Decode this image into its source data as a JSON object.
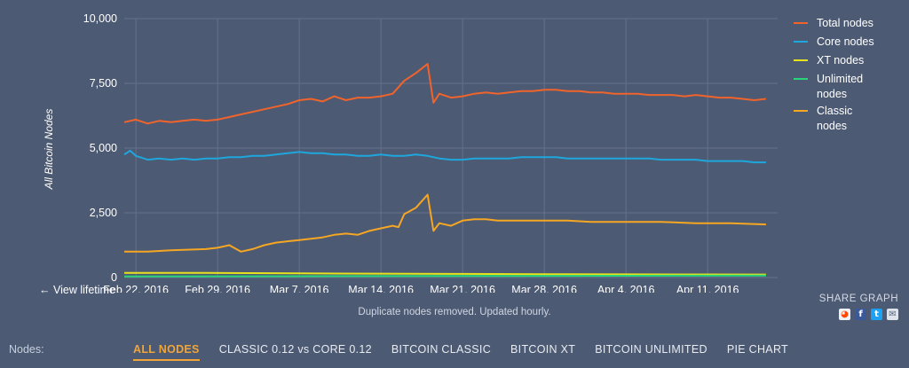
{
  "chart_data": {
    "type": "line",
    "ylabel": "All Bitcoin Nodes",
    "ylim": [
      0,
      10000
    ],
    "yticks": [
      {
        "value": 0,
        "label": "0"
      },
      {
        "value": 2500,
        "label": "2,500"
      },
      {
        "value": 5000,
        "label": "5,000"
      },
      {
        "value": 7500,
        "label": "7,500"
      },
      {
        "value": 10000,
        "label": "10,000"
      }
    ],
    "xlim": [
      "2016-02-21",
      "2016-04-17"
    ],
    "xticks": [
      {
        "date": "2016-02-22",
        "label": "Feb 22, 2016"
      },
      {
        "date": "2016-02-29",
        "label": "Feb 29, 2016"
      },
      {
        "date": "2016-03-07",
        "label": "Mar 7, 2016"
      },
      {
        "date": "2016-03-14",
        "label": "Mar 14, 2016"
      },
      {
        "date": "2016-03-21",
        "label": "Mar 21, 2016"
      },
      {
        "date": "2016-03-28",
        "label": "Mar 28, 2016"
      },
      {
        "date": "2016-04-04",
        "label": "Apr 4, 2016"
      },
      {
        "date": "2016-04-11",
        "label": "Apr 11, 2016"
      }
    ],
    "grid": true,
    "legend": "right",
    "series": [
      {
        "name": "Total nodes",
        "color": "#f0642c",
        "points": [
          [
            "2016-02-21",
            6000
          ],
          [
            "2016-02-22",
            6100
          ],
          [
            "2016-02-23",
            5950
          ],
          [
            "2016-02-24",
            6050
          ],
          [
            "2016-02-25",
            6000
          ],
          [
            "2016-02-26",
            6050
          ],
          [
            "2016-02-27",
            6100
          ],
          [
            "2016-02-28",
            6050
          ],
          [
            "2016-02-29",
            6100
          ],
          [
            "2016-03-01",
            6200
          ],
          [
            "2016-03-02",
            6300
          ],
          [
            "2016-03-03",
            6400
          ],
          [
            "2016-03-04",
            6500
          ],
          [
            "2016-03-05",
            6600
          ],
          [
            "2016-03-06",
            6700
          ],
          [
            "2016-03-07",
            6850
          ],
          [
            "2016-03-08",
            6900
          ],
          [
            "2016-03-09",
            6800
          ],
          [
            "2016-03-10",
            7000
          ],
          [
            "2016-03-11",
            6850
          ],
          [
            "2016-03-12",
            6950
          ],
          [
            "2016-03-13",
            6950
          ],
          [
            "2016-03-14",
            7000
          ],
          [
            "2016-03-15",
            7100
          ],
          [
            "2016-03-16",
            7600
          ],
          [
            "2016-03-17",
            7900
          ],
          [
            "2016-03-18",
            8250
          ],
          [
            "2016-03-18T12:00",
            6750
          ],
          [
            "2016-03-19",
            7100
          ],
          [
            "2016-03-20",
            6950
          ],
          [
            "2016-03-21",
            7000
          ],
          [
            "2016-03-22",
            7100
          ],
          [
            "2016-03-23",
            7150
          ],
          [
            "2016-03-24",
            7100
          ],
          [
            "2016-03-25",
            7150
          ],
          [
            "2016-03-26",
            7200
          ],
          [
            "2016-03-27",
            7200
          ],
          [
            "2016-03-28",
            7250
          ],
          [
            "2016-03-29",
            7250
          ],
          [
            "2016-03-30",
            7200
          ],
          [
            "2016-03-31",
            7200
          ],
          [
            "2016-04-01",
            7150
          ],
          [
            "2016-04-02",
            7150
          ],
          [
            "2016-04-03",
            7100
          ],
          [
            "2016-04-04",
            7100
          ],
          [
            "2016-04-05",
            7100
          ],
          [
            "2016-04-06",
            7050
          ],
          [
            "2016-04-07",
            7050
          ],
          [
            "2016-04-08",
            7050
          ],
          [
            "2016-04-09",
            7000
          ],
          [
            "2016-04-10",
            7050
          ],
          [
            "2016-04-11",
            7000
          ],
          [
            "2016-04-12",
            6950
          ],
          [
            "2016-04-13",
            6950
          ],
          [
            "2016-04-14",
            6900
          ],
          [
            "2016-04-15",
            6850
          ],
          [
            "2016-04-16",
            6900
          ]
        ]
      },
      {
        "name": "Core nodes",
        "color": "#1ea7dd",
        "points": [
          [
            "2016-02-21",
            4750
          ],
          [
            "2016-02-21T12:00",
            4900
          ],
          [
            "2016-02-22",
            4700
          ],
          [
            "2016-02-23",
            4550
          ],
          [
            "2016-02-24",
            4600
          ],
          [
            "2016-02-25",
            4550
          ],
          [
            "2016-02-26",
            4600
          ],
          [
            "2016-02-27",
            4550
          ],
          [
            "2016-02-28",
            4600
          ],
          [
            "2016-02-29",
            4600
          ],
          [
            "2016-03-01",
            4650
          ],
          [
            "2016-03-02",
            4650
          ],
          [
            "2016-03-03",
            4700
          ],
          [
            "2016-03-04",
            4700
          ],
          [
            "2016-03-05",
            4750
          ],
          [
            "2016-03-06",
            4800
          ],
          [
            "2016-03-07",
            4850
          ],
          [
            "2016-03-08",
            4800
          ],
          [
            "2016-03-09",
            4800
          ],
          [
            "2016-03-10",
            4750
          ],
          [
            "2016-03-11",
            4750
          ],
          [
            "2016-03-12",
            4700
          ],
          [
            "2016-03-13",
            4700
          ],
          [
            "2016-03-14",
            4750
          ],
          [
            "2016-03-15",
            4700
          ],
          [
            "2016-03-16",
            4700
          ],
          [
            "2016-03-17",
            4750
          ],
          [
            "2016-03-18",
            4700
          ],
          [
            "2016-03-19",
            4600
          ],
          [
            "2016-03-20",
            4550
          ],
          [
            "2016-03-21",
            4550
          ],
          [
            "2016-03-22",
            4600
          ],
          [
            "2016-03-23",
            4600
          ],
          [
            "2016-03-24",
            4600
          ],
          [
            "2016-03-25",
            4600
          ],
          [
            "2016-03-26",
            4650
          ],
          [
            "2016-03-27",
            4650
          ],
          [
            "2016-03-28",
            4650
          ],
          [
            "2016-03-29",
            4650
          ],
          [
            "2016-03-30",
            4600
          ],
          [
            "2016-03-31",
            4600
          ],
          [
            "2016-04-01",
            4600
          ],
          [
            "2016-04-02",
            4600
          ],
          [
            "2016-04-03",
            4600
          ],
          [
            "2016-04-04",
            4600
          ],
          [
            "2016-04-05",
            4600
          ],
          [
            "2016-04-06",
            4600
          ],
          [
            "2016-04-07",
            4550
          ],
          [
            "2016-04-08",
            4550
          ],
          [
            "2016-04-09",
            4550
          ],
          [
            "2016-04-10",
            4550
          ],
          [
            "2016-04-11",
            4500
          ],
          [
            "2016-04-12",
            4500
          ],
          [
            "2016-04-13",
            4500
          ],
          [
            "2016-04-14",
            4500
          ],
          [
            "2016-04-15",
            4450
          ],
          [
            "2016-04-16",
            4450
          ]
        ]
      },
      {
        "name": "XT nodes",
        "color": "#e8e21c",
        "points": [
          [
            "2016-02-21",
            180
          ],
          [
            "2016-02-28",
            180
          ],
          [
            "2016-03-07",
            160
          ],
          [
            "2016-03-14",
            150
          ],
          [
            "2016-03-21",
            140
          ],
          [
            "2016-03-28",
            130
          ],
          [
            "2016-04-04",
            125
          ],
          [
            "2016-04-11",
            120
          ],
          [
            "2016-04-16",
            115
          ]
        ]
      },
      {
        "name": "Unlimited\nnodes",
        "color": "#27d67a",
        "points": [
          [
            "2016-02-21",
            40
          ],
          [
            "2016-03-07",
            50
          ],
          [
            "2016-03-21",
            60
          ],
          [
            "2016-04-04",
            70
          ],
          [
            "2016-04-16",
            80
          ]
        ]
      },
      {
        "name": "Classic\nnodes",
        "color": "#f5a623",
        "points": [
          [
            "2016-02-21",
            1000
          ],
          [
            "2016-02-23",
            1000
          ],
          [
            "2016-02-25",
            1050
          ],
          [
            "2016-02-28",
            1100
          ],
          [
            "2016-02-29",
            1150
          ],
          [
            "2016-03-01",
            1250
          ],
          [
            "2016-03-02",
            1000
          ],
          [
            "2016-03-03",
            1100
          ],
          [
            "2016-03-04",
            1250
          ],
          [
            "2016-03-05",
            1350
          ],
          [
            "2016-03-06",
            1400
          ],
          [
            "2016-03-07",
            1450
          ],
          [
            "2016-03-09",
            1550
          ],
          [
            "2016-03-10",
            1650
          ],
          [
            "2016-03-11",
            1700
          ],
          [
            "2016-03-12",
            1650
          ],
          [
            "2016-03-13",
            1800
          ],
          [
            "2016-03-14",
            1900
          ],
          [
            "2016-03-15",
            2000
          ],
          [
            "2016-03-15T12:00",
            1950
          ],
          [
            "2016-03-16",
            2450
          ],
          [
            "2016-03-17",
            2700
          ],
          [
            "2016-03-18",
            3200
          ],
          [
            "2016-03-18T12:00",
            1800
          ],
          [
            "2016-03-19",
            2100
          ],
          [
            "2016-03-20",
            2000
          ],
          [
            "2016-03-21",
            2200
          ],
          [
            "2016-03-22",
            2250
          ],
          [
            "2016-03-23",
            2250
          ],
          [
            "2016-03-24",
            2200
          ],
          [
            "2016-03-25",
            2200
          ],
          [
            "2016-03-26",
            2200
          ],
          [
            "2016-03-28",
            2200
          ],
          [
            "2016-03-30",
            2200
          ],
          [
            "2016-04-01",
            2150
          ],
          [
            "2016-04-04",
            2150
          ],
          [
            "2016-04-07",
            2150
          ],
          [
            "2016-04-10",
            2100
          ],
          [
            "2016-04-13",
            2100
          ],
          [
            "2016-04-16",
            2050
          ]
        ]
      }
    ]
  },
  "view_lifetime": "← View lifetime",
  "note": "Duplicate nodes removed. Updated hourly.",
  "share": {
    "title": "SHARE GRAPH",
    "icons": [
      "reddit-icon",
      "facebook-icon",
      "twitter-icon",
      "email-icon"
    ]
  },
  "nav": {
    "label": "Nodes:",
    "tabs": [
      "ALL NODES",
      "CLASSIC 0.12 vs CORE 0.12",
      "BITCOIN CLASSIC",
      "BITCOIN XT",
      "BITCOIN UNLIMITED",
      "PIE CHART"
    ],
    "active": 0
  }
}
